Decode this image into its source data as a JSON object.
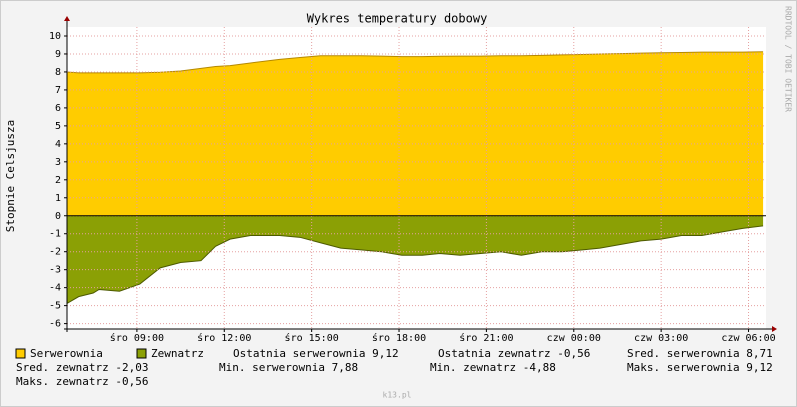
{
  "chart_data": {
    "type": "area",
    "title": "Wykres temperatury dobowy",
    "y_label": "Stopnie Celsjusza",
    "side_text": "RRDTOOL / TOBI OETIKER",
    "footer": "k13.pl",
    "x": [
      6.6,
      7.0,
      7.5,
      7.7,
      8.4,
      9.1,
      9.8,
      10.5,
      11.2,
      11.7,
      12.2,
      12.9,
      13.9,
      14.6,
      15.3,
      16.0,
      16.7,
      17.4,
      18.1,
      18.8,
      19.4,
      20.1,
      20.8,
      21.5,
      22.2,
      22.9,
      23.6,
      24.3,
      24.9,
      25.6,
      26.3,
      27.0,
      27.7,
      28.4,
      29.1,
      29.8,
      30.5
    ],
    "series": [
      {
        "name": "Serwerownia",
        "color": "#ffcc00",
        "stroke": "#b58900",
        "values": [
          8.0,
          7.95,
          7.95,
          7.95,
          7.95,
          7.95,
          7.98,
          8.05,
          8.2,
          8.3,
          8.35,
          8.5,
          8.7,
          8.8,
          8.9,
          8.9,
          8.9,
          8.88,
          8.85,
          8.85,
          8.87,
          8.88,
          8.88,
          8.9,
          8.9,
          8.92,
          8.95,
          8.97,
          9.0,
          9.02,
          9.05,
          9.07,
          9.08,
          9.1,
          9.1,
          9.1,
          9.12
        ]
      },
      {
        "name": "Zewnatrz",
        "color": "#8ba005",
        "stroke": "#4d5a00",
        "values": [
          -4.88,
          -4.5,
          -4.3,
          -4.1,
          -4.2,
          -3.8,
          -2.9,
          -2.6,
          -2.5,
          -1.7,
          -1.3,
          -1.1,
          -1.1,
          -1.2,
          -1.5,
          -1.8,
          -1.9,
          -2.0,
          -2.2,
          -2.2,
          -2.1,
          -2.2,
          -2.1,
          -2.0,
          -2.2,
          -2.0,
          -2.0,
          -1.9,
          -1.8,
          -1.6,
          -1.4,
          -1.3,
          -1.1,
          -1.1,
          -0.9,
          -0.7,
          -0.56
        ]
      }
    ],
    "xlim": [
      6.6,
      30.6
    ],
    "xticks": [
      {
        "value": 9,
        "label": "śro 09:00"
      },
      {
        "value": 12,
        "label": "śro 12:00"
      },
      {
        "value": 15,
        "label": "śro 15:00"
      },
      {
        "value": 18,
        "label": "śro 18:00"
      },
      {
        "value": 21,
        "label": "śro 21:00"
      },
      {
        "value": 24,
        "label": "czw 00:00"
      },
      {
        "value": 27,
        "label": "czw 03:00"
      },
      {
        "value": 30,
        "label": "czw 06:00"
      }
    ],
    "ylim": [
      -6.3,
      10.5
    ],
    "yticks": [
      -6,
      -5,
      -4,
      -3,
      -2,
      -1,
      0,
      1,
      2,
      3,
      4,
      5,
      6,
      7,
      8,
      9,
      10
    ],
    "grid": true,
    "stats": [
      [
        "Ostatnia serwerownia 9,12",
        "Ostatnia zewnatrz -0,56",
        "Sred. serwerownia 8,71"
      ],
      [
        "Sred. zewnatrz -2,03",
        "Min. serwerownia 7,88",
        "Min. zewnatrz -4,88",
        "Maks. serwerownia 9,12"
      ],
      [
        "Maks. zewnatrz -0,56"
      ]
    ]
  }
}
